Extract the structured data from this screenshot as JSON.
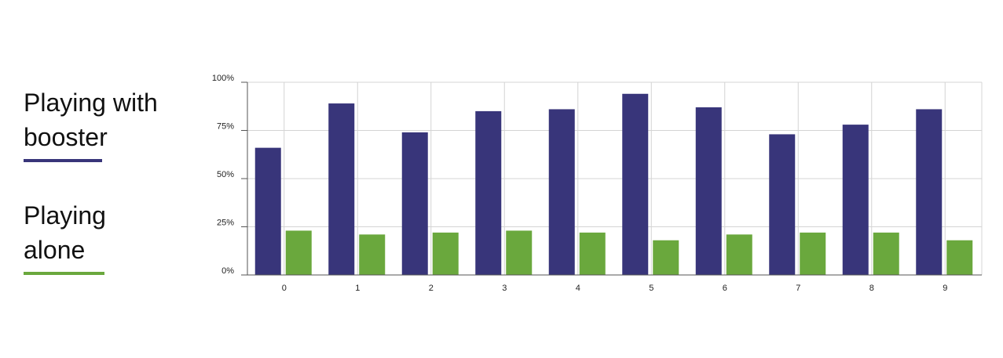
{
  "chart_data": {
    "type": "bar",
    "categories": [
      "0",
      "1",
      "2",
      "3",
      "4",
      "5",
      "6",
      "7",
      "8",
      "9"
    ],
    "series": [
      {
        "name": "Playing with booster",
        "color": "#38357a",
        "values": [
          66,
          89,
          74,
          85,
          86,
          94,
          87,
          73,
          78,
          86
        ]
      },
      {
        "name": "Playing alone",
        "color": "#6aa83d",
        "values": [
          23,
          21,
          22,
          23,
          22,
          18,
          21,
          22,
          22,
          18
        ]
      }
    ],
    "ylim": [
      0,
      100
    ],
    "yticks": [
      {
        "value": 0,
        "label": "0%"
      },
      {
        "value": 25,
        "label": "25%"
      },
      {
        "value": 50,
        "label": "50%"
      },
      {
        "value": 75,
        "label": "75%"
      },
      {
        "value": 100,
        "label": "100%"
      }
    ],
    "grid": true
  }
}
